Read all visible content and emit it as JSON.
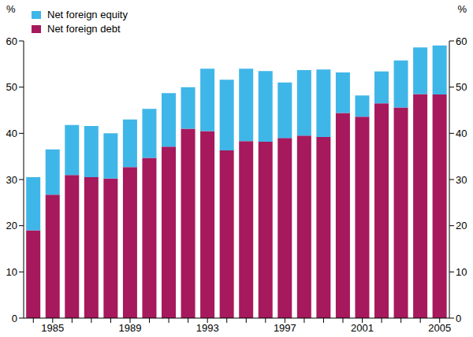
{
  "chart_data": {
    "type": "bar",
    "stacked": true,
    "ylabel": "%",
    "legend": "upper left",
    "grid": false,
    "categories": [
      null,
      1985,
      null,
      null,
      null,
      1989,
      null,
      null,
      null,
      1993,
      null,
      null,
      null,
      1997,
      null,
      null,
      null,
      2001,
      null,
      null,
      null,
      2005
    ],
    "ylim": [
      0,
      60
    ],
    "yticks": [
      0,
      10,
      20,
      30,
      40,
      50,
      60
    ],
    "series": [
      {
        "name": "Net foreign debt",
        "color": "#a6195c",
        "values": [
          19,
          26.7,
          31,
          30.5,
          30.2,
          32.7,
          34.7,
          37.1,
          41,
          40.5,
          36.3,
          38.3,
          38.2,
          39,
          39.5,
          39.2,
          44.4,
          43.6,
          46.5,
          45.6,
          48.5,
          48.4
        ]
      },
      {
        "name": "Net foreign equity",
        "color": "#3fb6e8",
        "values": [
          11.5,
          9.8,
          10.8,
          11.1,
          9.8,
          10.3,
          10.6,
          11.6,
          9,
          13.5,
          15.3,
          15.7,
          15.3,
          12,
          14.2,
          14.6,
          8.8,
          4.6,
          6.9,
          10.2,
          10.1,
          10.6
        ]
      }
    ]
  }
}
